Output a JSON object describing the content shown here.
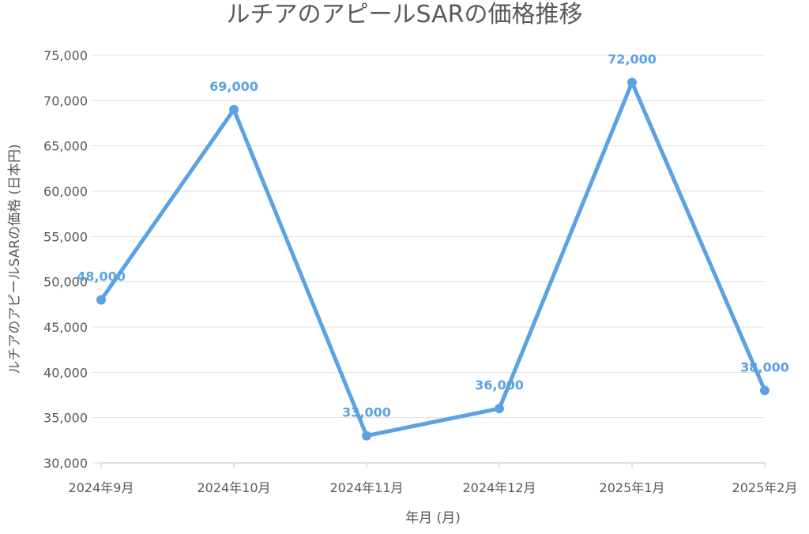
{
  "chart_data": {
    "type": "line",
    "title": "ルチアのアピールSARの価格推移",
    "xlabel": "年月 (月)",
    "ylabel": "ルチアのアピールSARの価格 (日本円)",
    "categories": [
      "2024年9月",
      "2024年10月",
      "2024年11月",
      "2024年12月",
      "2025年1月",
      "2025年2月"
    ],
    "series": [
      {
        "values": [
          48000,
          69000,
          33000,
          36000,
          72000,
          38000
        ]
      }
    ],
    "data_labels": [
      "48,000",
      "69,000",
      "33,000",
      "36,000",
      "72,000",
      "38,000"
    ],
    "ylim": [
      30000,
      75000
    ],
    "yticks": [
      30000,
      35000,
      40000,
      45000,
      50000,
      55000,
      60000,
      65000,
      70000,
      75000
    ],
    "ytick_labels": [
      "30,000",
      "35,000",
      "40,000",
      "45,000",
      "50,000",
      "55,000",
      "60,000",
      "65,000",
      "70,000",
      "75,000"
    ],
    "grid": true,
    "legend": "none",
    "colors": {
      "line": "#5aa2e4",
      "grid": "#e0e0e0",
      "axis": "#bfbfbf",
      "text": "#595959"
    }
  }
}
